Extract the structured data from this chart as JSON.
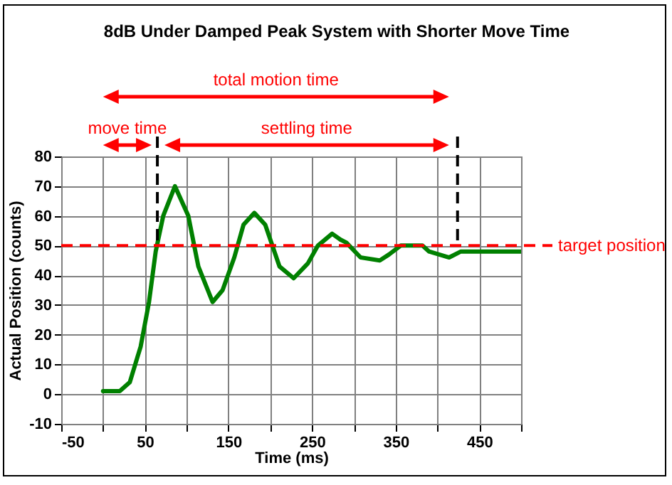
{
  "chart_data": {
    "type": "line",
    "title": "8dB Under Damped Peak System with Shorter Move Time",
    "xlabel": "Time (ms)",
    "ylabel": "Actual Position (counts)",
    "x": [
      0,
      20,
      32,
      45,
      55,
      63,
      72,
      86,
      102,
      114,
      131,
      143,
      157,
      168,
      181,
      194,
      211,
      228,
      245,
      257,
      274,
      284,
      291,
      308,
      331,
      342,
      356,
      382,
      390,
      414,
      428,
      500
    ],
    "series": [
      {
        "color": "#008000",
        "values": [
          1,
          1,
          4,
          16,
          31,
          48,
          60,
          70,
          60,
          43,
          31,
          35,
          46,
          57,
          61,
          57,
          43,
          39,
          44,
          50,
          54,
          52,
          51,
          46,
          45,
          47,
          50,
          50,
          48,
          46,
          48,
          48
        ]
      }
    ],
    "xlim": [
      -50,
      500
    ],
    "ylim": [
      -10,
      80
    ],
    "xticks": [
      -50,
      {
        "value": 0,
        "label": null
      },
      50,
      {
        "value": 100,
        "label": null
      },
      150,
      {
        "value": 200,
        "label": null
      },
      250,
      {
        "value": 300,
        "label": null
      },
      350,
      {
        "value": 400,
        "label": null
      },
      450,
      {
        "value": 500,
        "label": null
      }
    ],
    "yticks": [
      -10,
      0,
      10,
      20,
      30,
      40,
      50,
      60,
      70,
      80
    ],
    "grid": true,
    "line_style": "solid",
    "ref_lines": [
      {
        "axis": "y",
        "value": 50,
        "label": "target position",
        "color": "#ff0000",
        "line_style": "dashed"
      },
      {
        "axis": "x",
        "value": 65,
        "color": "#000000",
        "line_style": "dashed"
      },
      {
        "axis": "x",
        "value": 424,
        "color": "#000000",
        "line_style": "dashed"
      }
    ],
    "annotations": [
      "total motion time",
      "move time",
      "settling time"
    ]
  }
}
